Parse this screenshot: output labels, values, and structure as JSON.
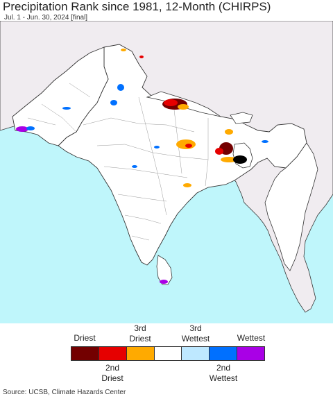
{
  "title": "Precipitation Rank since 1981, 12-Month (CHIRPS)",
  "subtitle": "Jul. 1 - Jun. 30, 2024 [final]",
  "source": "Source: UCSB, Climate Hazards Center",
  "colors": {
    "ocean": "#bff6fb",
    "foreign_land": "#f0ecf0",
    "land": "#ffffff",
    "border": "#333333",
    "state_border": "#888888"
  },
  "legend": {
    "top_labels": [
      {
        "text": "Driest",
        "slot": 0
      },
      {
        "text": "3rd\nDriest",
        "slot": 2
      },
      {
        "text": "3rd\nWettest",
        "slot": 4
      },
      {
        "text": "Wettest",
        "slot": 6
      }
    ],
    "bottom_labels": [
      {
        "text": "2nd\nDriest",
        "slot": 1
      },
      {
        "text": "2nd\nWettest",
        "slot": 5
      }
    ],
    "swatches": [
      {
        "name": "driest",
        "color": "#730000"
      },
      {
        "name": "2nd-driest",
        "color": "#e60000"
      },
      {
        "name": "3rd-driest",
        "color": "#ffaa00"
      },
      {
        "name": "normal",
        "color": "#ffffff"
      },
      {
        "name": "3rd-wettest",
        "color": "#bee8ff"
      },
      {
        "name": "2nd-wettest",
        "color": "#0070ff"
      },
      {
        "name": "wettest",
        "color": "#a900e6"
      }
    ]
  }
}
